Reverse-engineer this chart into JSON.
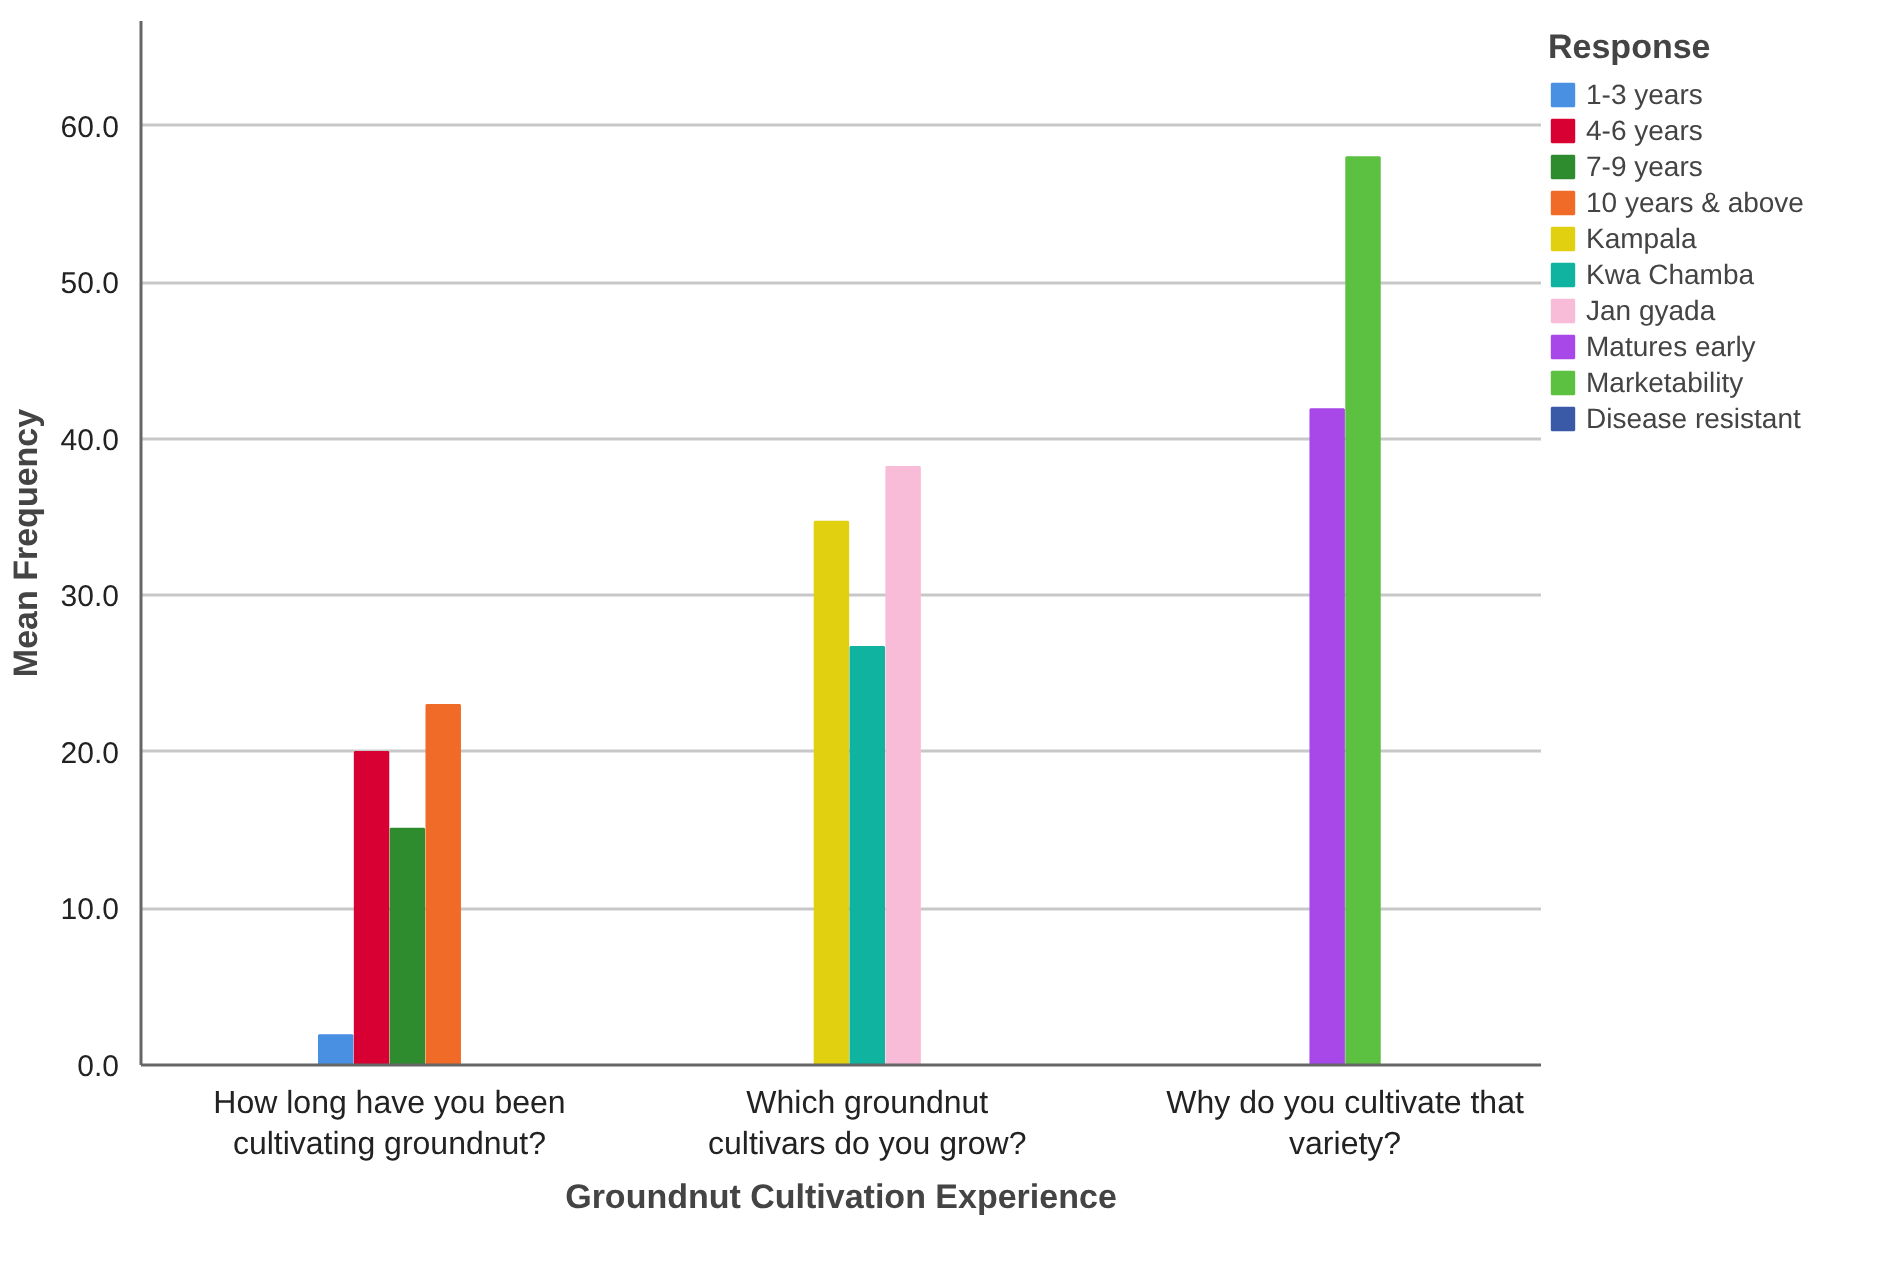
{
  "chart_data": {
    "type": "bar",
    "xlabel": "Groundnut Cultivation Experience",
    "ylabel": "Mean Frequency",
    "legend_title": "Response",
    "categories": [
      "How long have you been\ncultivating groundnut?",
      "Which groundnut\ncultivars do you grow?",
      "Why do you cultivate that\nvariety?"
    ],
    "series": [
      {
        "name": "1-3 years",
        "color": "#4a90e2",
        "values": [
          1.9,
          null,
          null
        ]
      },
      {
        "name": "4-6 years",
        "color": "#d80032",
        "values": [
          20.0,
          null,
          null
        ]
      },
      {
        "name": "7-9 years",
        "color": "#2e8b2e",
        "values": [
          15.1,
          null,
          null
        ]
      },
      {
        "name": "10 years & above",
        "color": "#f06a28",
        "values": [
          23.0,
          null,
          null
        ]
      },
      {
        "name": "Kampala",
        "color": "#e0d010",
        "values": [
          null,
          34.7,
          null
        ]
      },
      {
        "name": "Kwa Chamba",
        "color": "#10b3a0",
        "values": [
          null,
          26.7,
          null
        ]
      },
      {
        "name": "Jan gyada",
        "color": "#f8bcd8",
        "values": [
          null,
          38.2,
          null
        ]
      },
      {
        "name": "Matures early",
        "color": "#a848e8",
        "values": [
          null,
          null,
          41.9
        ]
      },
      {
        "name": "Marketability",
        "color": "#5cc040",
        "values": [
          null,
          null,
          58.0
        ]
      },
      {
        "name": "Disease resistant",
        "color": "#3a5aa8",
        "values": [
          null,
          null,
          null
        ]
      }
    ],
    "ylim": [
      0,
      66.7
    ],
    "yticks": [
      {
        "value": 0,
        "label": "0.0"
      },
      {
        "value": 10,
        "label": "10.0"
      },
      {
        "value": 20,
        "label": "20.0"
      },
      {
        "value": 30,
        "label": "30.0"
      },
      {
        "value": 40,
        "label": "40.0"
      },
      {
        "value": 50,
        "label": "50.0"
      },
      {
        "value": 60,
        "label": "60.0"
      }
    ],
    "grid": "y",
    "legend": "right"
  }
}
